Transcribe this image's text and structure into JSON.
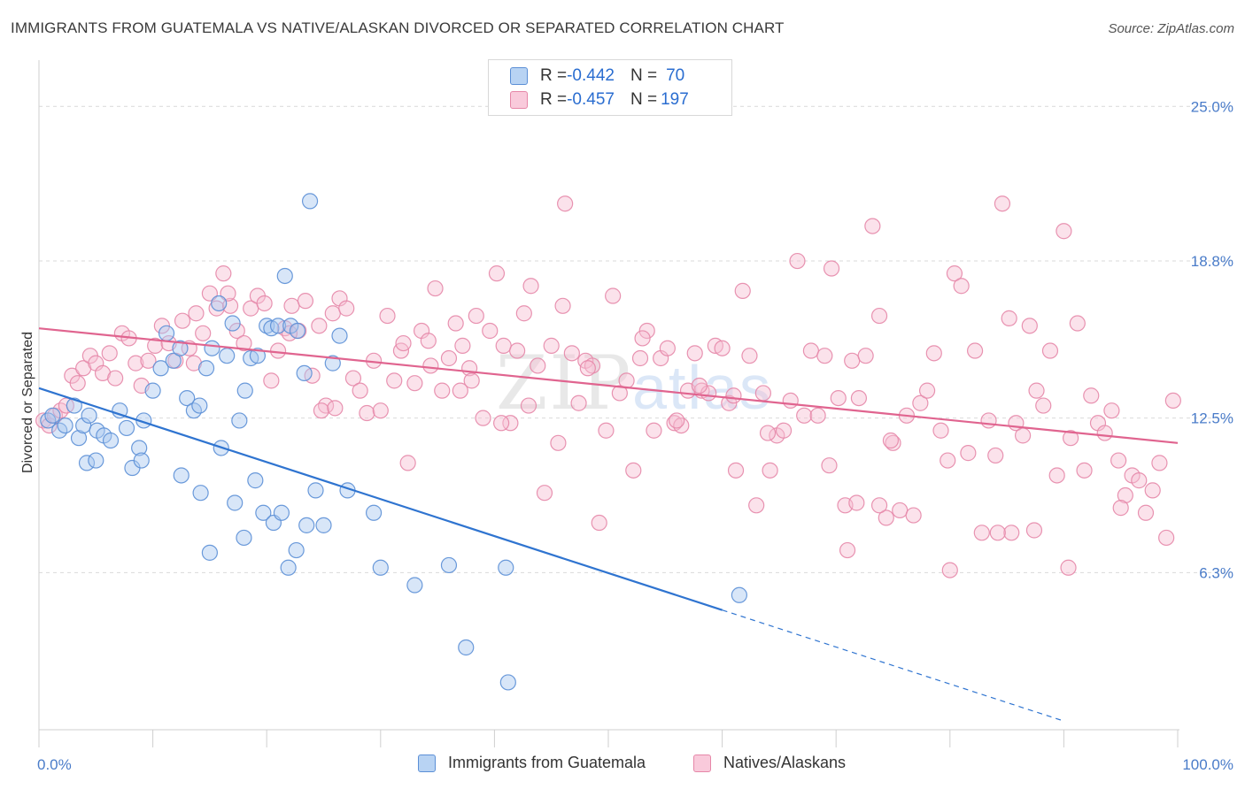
{
  "header": {
    "title": "IMMIGRANTS FROM GUATEMALA VS NATIVE/ALASKAN DIVORCED OR SEPARATED CORRELATION CHART",
    "source": "Source: ZipAtlas.com"
  },
  "legend": {
    "rows": [
      {
        "r_label": "R = ",
        "r_value": "-0.442",
        "n_label": "N = ",
        "n_value": "70"
      },
      {
        "r_label": "R = ",
        "r_value": "-0.457",
        "n_label": "N = ",
        "n_value": "197"
      }
    ]
  },
  "chart_data": {
    "type": "scatter",
    "title": "IMMIGRANTS FROM GUATEMALA VS NATIVE/ALASKAN DIVORCED OR SEPARATED CORRELATION CHART",
    "xlabel": "",
    "ylabel": "Divorced or Separated",
    "xlim": [
      0,
      100
    ],
    "ylim": [
      0,
      26.5
    ],
    "x_tick_labels": [
      "0.0%",
      "100.0%"
    ],
    "y_ticks": [
      6.3,
      12.5,
      18.8,
      25.0
    ],
    "y_tick_labels": [
      "6.3%",
      "12.5%",
      "18.8%",
      "25.0%"
    ],
    "grid": true,
    "legend_placement": "top-center",
    "watermark": "ZIPatlas",
    "colors": {
      "blue_fill": "#a8c8f0",
      "blue_stroke": "#5b8fd6",
      "blue_line": "#2f74d0",
      "pink_fill": "#f7bfd2",
      "pink_stroke": "#e687a8",
      "pink_line": "#e0648f",
      "tick_text": "#4a7cc9",
      "grid": "#d9d9d9"
    },
    "series": [
      {
        "name": "Immigrants from Guatemala",
        "color": "blue",
        "trend": {
          "x0": 0,
          "y0": 13.7,
          "x1": 60,
          "y1": 4.8,
          "dash_to_x": 90,
          "dash_to_y": 0.35
        },
        "points": [
          [
            0.8,
            12.4
          ],
          [
            1.2,
            12.6
          ],
          [
            1.8,
            12.0
          ],
          [
            2.3,
            12.2
          ],
          [
            3.1,
            13.0
          ],
          [
            3.5,
            11.7
          ],
          [
            3.9,
            12.2
          ],
          [
            4.4,
            12.6
          ],
          [
            5.1,
            12.0
          ],
          [
            5.7,
            11.8
          ],
          [
            6.3,
            11.6
          ],
          [
            7.1,
            12.8
          ],
          [
            7.7,
            12.1
          ],
          [
            8.2,
            10.5
          ],
          [
            8.8,
            11.3
          ],
          [
            9.2,
            12.4
          ],
          [
            10.0,
            13.6
          ],
          [
            10.7,
            14.5
          ],
          [
            11.2,
            15.9
          ],
          [
            11.8,
            14.8
          ],
          [
            12.4,
            15.3
          ],
          [
            13.0,
            13.3
          ],
          [
            13.6,
            12.8
          ],
          [
            14.1,
            13.0
          ],
          [
            14.7,
            14.5
          ],
          [
            15.2,
            15.3
          ],
          [
            15.8,
            17.1
          ],
          [
            16.5,
            15.0
          ],
          [
            17.0,
            16.3
          ],
          [
            17.6,
            12.4
          ],
          [
            18.1,
            13.6
          ],
          [
            18.6,
            14.9
          ],
          [
            19.2,
            15.0
          ],
          [
            20.0,
            16.2
          ],
          [
            20.4,
            16.1
          ],
          [
            21.0,
            16.2
          ],
          [
            21.6,
            18.2
          ],
          [
            22.1,
            16.2
          ],
          [
            22.7,
            16.0
          ],
          [
            23.3,
            14.3
          ],
          [
            23.8,
            21.2
          ],
          [
            24.3,
            9.6
          ],
          [
            25.8,
            14.7
          ],
          [
            26.4,
            15.8
          ],
          [
            12.5,
            10.2
          ],
          [
            14.2,
            9.5
          ],
          [
            15.0,
            7.1
          ],
          [
            16.0,
            11.3
          ],
          [
            17.2,
            9.1
          ],
          [
            18.0,
            7.7
          ],
          [
            19.0,
            10.0
          ],
          [
            19.7,
            8.7
          ],
          [
            20.6,
            8.3
          ],
          [
            21.3,
            8.7
          ],
          [
            21.9,
            6.5
          ],
          [
            22.6,
            7.2
          ],
          [
            23.5,
            8.2
          ],
          [
            25.0,
            8.2
          ],
          [
            27.1,
            9.6
          ],
          [
            29.4,
            8.7
          ],
          [
            30.0,
            6.5
          ],
          [
            33.0,
            5.8
          ],
          [
            36.0,
            6.6
          ],
          [
            37.5,
            3.3
          ],
          [
            41.0,
            6.5
          ],
          [
            41.2,
            1.9
          ],
          [
            61.5,
            5.4
          ],
          [
            9.0,
            10.8
          ],
          [
            4.2,
            10.7
          ],
          [
            5.0,
            10.8
          ]
        ]
      },
      {
        "name": "Natives/Alaskans",
        "color": "pink",
        "trend": {
          "x0": 0,
          "y0": 16.1,
          "x1": 100,
          "y1": 11.5
        },
        "points": [
          [
            0.4,
            12.4
          ],
          [
            0.9,
            12.2
          ],
          [
            1.4,
            12.6
          ],
          [
            1.9,
            12.8
          ],
          [
            2.4,
            13.0
          ],
          [
            2.9,
            14.2
          ],
          [
            3.4,
            13.9
          ],
          [
            3.9,
            14.5
          ],
          [
            4.5,
            15.0
          ],
          [
            5.0,
            14.7
          ],
          [
            5.6,
            14.3
          ],
          [
            6.2,
            15.1
          ],
          [
            6.7,
            14.1
          ],
          [
            7.3,
            15.9
          ],
          [
            7.9,
            15.7
          ],
          [
            8.5,
            14.7
          ],
          [
            9.0,
            13.8
          ],
          [
            9.6,
            14.8
          ],
          [
            10.2,
            15.4
          ],
          [
            10.8,
            16.2
          ],
          [
            11.4,
            15.5
          ],
          [
            12.0,
            14.8
          ],
          [
            12.6,
            16.4
          ],
          [
            13.2,
            15.3
          ],
          [
            13.8,
            16.7
          ],
          [
            14.4,
            15.9
          ],
          [
            15.0,
            17.5
          ],
          [
            15.6,
            16.9
          ],
          [
            16.2,
            18.3
          ],
          [
            16.8,
            17.0
          ],
          [
            17.4,
            16.0
          ],
          [
            18.0,
            15.5
          ],
          [
            18.6,
            16.9
          ],
          [
            19.2,
            17.4
          ],
          [
            19.8,
            17.1
          ],
          [
            20.4,
            14.0
          ],
          [
            21.0,
            15.2
          ],
          [
            21.6,
            16.1
          ],
          [
            22.2,
            17.0
          ],
          [
            22.8,
            16.0
          ],
          [
            23.4,
            17.2
          ],
          [
            24.0,
            14.2
          ],
          [
            24.6,
            16.2
          ],
          [
            25.2,
            13.0
          ],
          [
            25.8,
            16.7
          ],
          [
            26.4,
            17.3
          ],
          [
            27.0,
            16.9
          ],
          [
            27.6,
            14.1
          ],
          [
            28.2,
            13.6
          ],
          [
            28.8,
            12.7
          ],
          [
            29.4,
            14.8
          ],
          [
            30.0,
            12.8
          ],
          [
            30.6,
            16.6
          ],
          [
            31.2,
            14.0
          ],
          [
            31.8,
            15.2
          ],
          [
            32.4,
            10.7
          ],
          [
            33.0,
            13.9
          ],
          [
            33.6,
            16.0
          ],
          [
            34.2,
            15.6
          ],
          [
            34.8,
            17.7
          ],
          [
            35.4,
            13.6
          ],
          [
            36.0,
            14.9
          ],
          [
            36.6,
            16.3
          ],
          [
            37.2,
            15.4
          ],
          [
            37.8,
            14.5
          ],
          [
            38.4,
            16.6
          ],
          [
            39.0,
            12.5
          ],
          [
            39.6,
            16.0
          ],
          [
            40.2,
            18.3
          ],
          [
            40.8,
            15.4
          ],
          [
            41.4,
            12.3
          ],
          [
            42.0,
            15.2
          ],
          [
            42.6,
            16.7
          ],
          [
            43.2,
            17.8
          ],
          [
            43.8,
            14.6
          ],
          [
            44.4,
            9.5
          ],
          [
            45.0,
            15.4
          ],
          [
            45.6,
            11.5
          ],
          [
            46.2,
            21.1
          ],
          [
            46.8,
            15.1
          ],
          [
            47.4,
            13.1
          ],
          [
            48.0,
            14.8
          ],
          [
            48.6,
            14.6
          ],
          [
            49.2,
            8.3
          ],
          [
            49.8,
            12.0
          ],
          [
            50.4,
            17.4
          ],
          [
            51.0,
            13.5
          ],
          [
            51.6,
            14.0
          ],
          [
            52.2,
            10.4
          ],
          [
            52.8,
            14.9
          ],
          [
            53.4,
            16.0
          ],
          [
            54.0,
            12.0
          ],
          [
            54.6,
            14.9
          ],
          [
            55.2,
            15.3
          ],
          [
            55.8,
            12.3
          ],
          [
            56.4,
            12.2
          ],
          [
            57.0,
            13.6
          ],
          [
            57.6,
            15.1
          ],
          [
            58.2,
            13.6
          ],
          [
            58.8,
            13.5
          ],
          [
            59.4,
            15.4
          ],
          [
            60.0,
            15.3
          ],
          [
            60.6,
            13.1
          ],
          [
            61.2,
            10.4
          ],
          [
            61.8,
            17.6
          ],
          [
            62.4,
            15.0
          ],
          [
            63.0,
            9.0
          ],
          [
            63.6,
            13.5
          ],
          [
            64.2,
            10.4
          ],
          [
            64.8,
            11.8
          ],
          [
            65.4,
            12.0
          ],
          [
            66.0,
            13.2
          ],
          [
            66.6,
            18.8
          ],
          [
            67.2,
            12.6
          ],
          [
            67.8,
            15.2
          ],
          [
            68.4,
            12.6
          ],
          [
            69.0,
            15.0
          ],
          [
            69.6,
            18.5
          ],
          [
            70.2,
            13.3
          ],
          [
            70.8,
            9.0
          ],
          [
            71.4,
            14.8
          ],
          [
            72.0,
            13.3
          ],
          [
            72.6,
            15.0
          ],
          [
            73.2,
            20.2
          ],
          [
            73.8,
            16.6
          ],
          [
            74.4,
            8.5
          ],
          [
            75.0,
            11.5
          ],
          [
            75.6,
            8.8
          ],
          [
            76.2,
            12.6
          ],
          [
            76.8,
            8.6
          ],
          [
            77.4,
            13.1
          ],
          [
            78.0,
            13.6
          ],
          [
            78.6,
            15.1
          ],
          [
            79.2,
            12.0
          ],
          [
            79.8,
            10.8
          ],
          [
            80.4,
            18.3
          ],
          [
            81.0,
            17.8
          ],
          [
            81.6,
            11.1
          ],
          [
            82.2,
            15.2
          ],
          [
            82.8,
            7.9
          ],
          [
            83.4,
            12.4
          ],
          [
            84.0,
            11.0
          ],
          [
            84.6,
            21.1
          ],
          [
            85.2,
            16.5
          ],
          [
            85.8,
            12.3
          ],
          [
            86.4,
            11.8
          ],
          [
            87.0,
            16.2
          ],
          [
            87.6,
            13.6
          ],
          [
            88.2,
            13.0
          ],
          [
            88.8,
            15.2
          ],
          [
            89.4,
            10.2
          ],
          [
            90.0,
            20.0
          ],
          [
            90.6,
            11.7
          ],
          [
            91.2,
            16.3
          ],
          [
            91.8,
            10.4
          ],
          [
            92.4,
            13.4
          ],
          [
            93.0,
            12.3
          ],
          [
            93.6,
            11.9
          ],
          [
            94.2,
            12.8
          ],
          [
            94.8,
            10.8
          ],
          [
            95.4,
            9.4
          ],
          [
            96.0,
            10.2
          ],
          [
            96.6,
            10.0
          ],
          [
            97.2,
            8.7
          ],
          [
            97.8,
            9.6
          ],
          [
            98.4,
            10.7
          ],
          [
            99.0,
            7.7
          ],
          [
            99.6,
            13.2
          ],
          [
            38.0,
            14.0
          ],
          [
            56.0,
            12.4
          ],
          [
            53.0,
            15.7
          ],
          [
            46.0,
            17.0
          ],
          [
            24.8,
            12.8
          ],
          [
            16.6,
            17.5
          ],
          [
            32.0,
            15.5
          ],
          [
            71.0,
            7.2
          ],
          [
            80.0,
            6.4
          ],
          [
            90.4,
            6.5
          ],
          [
            85.4,
            7.9
          ],
          [
            84.2,
            7.9
          ],
          [
            87.4,
            8.0
          ],
          [
            95.0,
            8.9
          ],
          [
            71.8,
            9.1
          ],
          [
            73.8,
            9.0
          ],
          [
            64.0,
            11.9
          ],
          [
            58.0,
            13.8
          ],
          [
            61.0,
            13.4
          ],
          [
            74.8,
            11.6
          ],
          [
            69.4,
            10.6
          ],
          [
            40.6,
            12.3
          ],
          [
            48.2,
            14.5
          ],
          [
            43.0,
            13.0
          ],
          [
            34.4,
            14.6
          ],
          [
            37.0,
            13.6
          ],
          [
            26.0,
            12.9
          ],
          [
            22.0,
            15.9
          ],
          [
            13.6,
            14.7
          ]
        ]
      }
    ]
  },
  "bottom_legend": {
    "items": [
      {
        "label": "Immigrants from Guatemala"
      },
      {
        "label": "Natives/Alaskans"
      }
    ]
  }
}
